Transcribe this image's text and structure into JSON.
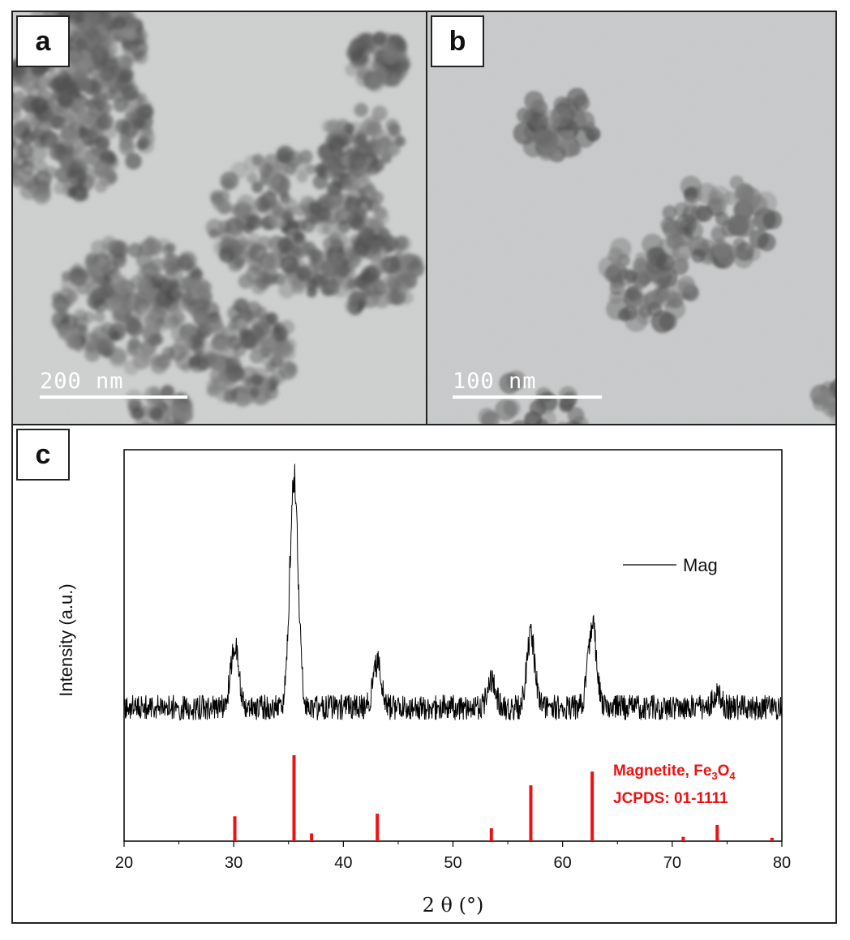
{
  "panels": {
    "a": {
      "label": "a",
      "scale_text": "200 nm"
    },
    "b": {
      "label": "b",
      "scale_text": "100 nm"
    },
    "c": {
      "label": "c"
    }
  },
  "chart_data": {
    "type": "line",
    "xlabel": "2 θ (°)",
    "ylabel": "Intensity (a.u.)",
    "xlim": [
      20,
      80
    ],
    "xticks": [
      20,
      30,
      40,
      50,
      60,
      70,
      80
    ],
    "legend": {
      "placement": "top-right",
      "label": "Mag"
    },
    "series": [
      {
        "name": "Mag",
        "color": "#000000",
        "baseline": 0.05,
        "peaks": [
          {
            "x": 30.1,
            "height": 0.26
          },
          {
            "x": 35.5,
            "height": 1.0
          },
          {
            "x": 43.1,
            "height": 0.19
          },
          {
            "x": 53.5,
            "height": 0.11
          },
          {
            "x": 57.1,
            "height": 0.3
          },
          {
            "x": 62.7,
            "height": 0.36
          },
          {
            "x": 74.1,
            "height": 0.05
          }
        ]
      }
    ],
    "reference": {
      "name": "Magnetite, Fe3O4",
      "title_text": "Magnetite, Fe",
      "title_sub1": "3",
      "title_mid": "O",
      "title_sub2": "4",
      "code": "JCPDS: 01-1111",
      "color": "#ee1111",
      "lines": [
        {
          "x": 30.1,
          "intensity": 0.29
        },
        {
          "x": 35.5,
          "intensity": 1.0
        },
        {
          "x": 37.1,
          "intensity": 0.09
        },
        {
          "x": 43.1,
          "intensity": 0.32
        },
        {
          "x": 53.5,
          "intensity": 0.15
        },
        {
          "x": 57.1,
          "intensity": 0.65
        },
        {
          "x": 62.7,
          "intensity": 0.81
        },
        {
          "x": 71.0,
          "intensity": 0.05
        },
        {
          "x": 74.1,
          "intensity": 0.19
        },
        {
          "x": 79.1,
          "intensity": 0.04
        }
      ]
    }
  }
}
